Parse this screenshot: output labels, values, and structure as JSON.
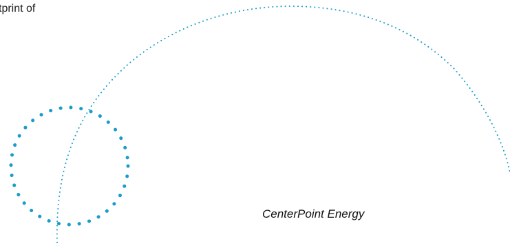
{
  "text": {
    "fragment": "tprint of",
    "company": "CenterPoint Energy"
  },
  "colors": {
    "accent": "#1a9cc9",
    "text": "#1d1d1d",
    "background": "#ffffff"
  }
}
